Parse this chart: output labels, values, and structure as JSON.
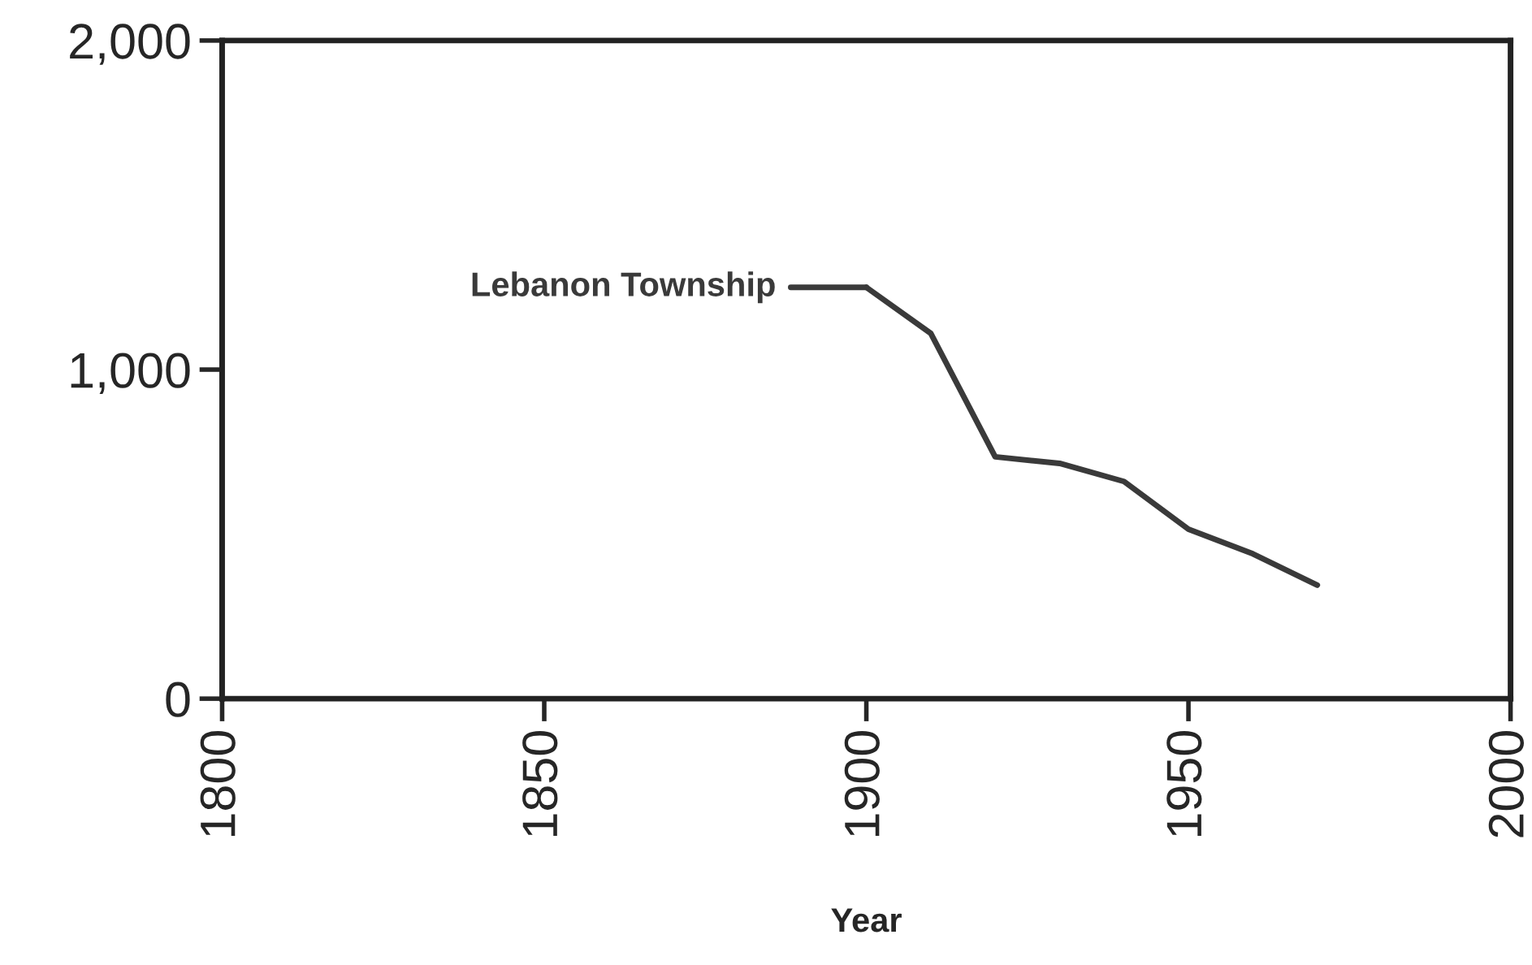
{
  "chart_data": {
    "type": "line",
    "xlabel": "Year",
    "x": [
      1900,
      1910,
      1920,
      1930,
      1940,
      1950,
      1960,
      1970
    ],
    "series": [
      {
        "color": "#3a3a3a",
        "values": [
          1250,
          1110,
          735,
          715,
          660,
          515,
          440,
          345
        ]
      }
    ],
    "annotations": [
      {
        "text": "Lebanon Township",
        "x": 1900,
        "y": 1250
      }
    ],
    "xlim": [
      1800,
      2000
    ],
    "xticks": [
      1800,
      1850,
      1900,
      1950,
      2000
    ],
    "ylim": [
      0,
      2000
    ],
    "yticks": [
      {
        "value": 0,
        "label": "0"
      },
      {
        "value": 1000,
        "label": "1,000"
      },
      {
        "value": 2000,
        "label": "2,000"
      }
    ],
    "grid": false,
    "legend": false,
    "marker": "none",
    "line_style": "solid"
  }
}
